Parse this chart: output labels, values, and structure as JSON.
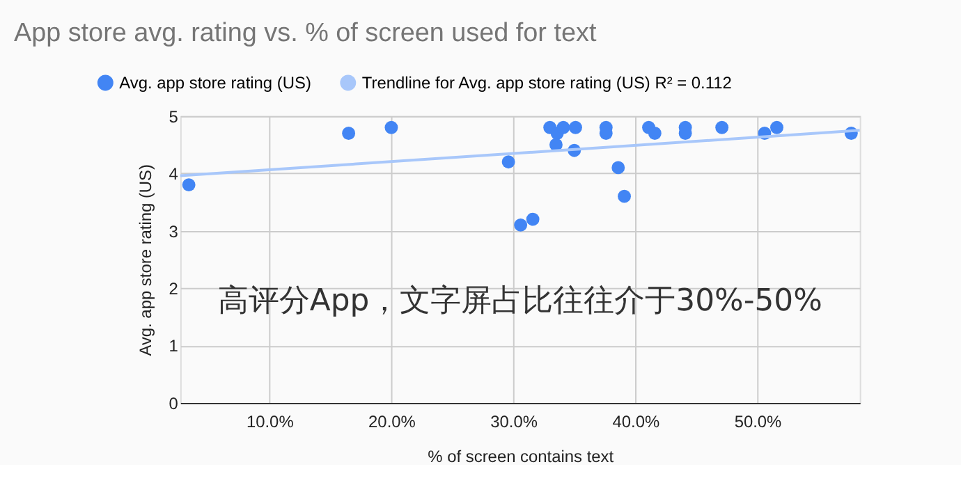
{
  "chart_data": {
    "type": "scatter",
    "title": "App store avg. rating vs. % of screen used for text",
    "xlabel": "% of screen contains text",
    "ylabel": "Avg. app store rating (US)",
    "x": [
      0.034,
      0.165,
      0.2,
      0.296,
      0.306,
      0.316,
      0.33,
      0.336,
      0.335,
      0.341,
      0.351,
      0.35,
      0.376,
      0.376,
      0.386,
      0.391,
      0.411,
      0.416,
      0.441,
      0.441,
      0.471,
      0.506,
      0.516,
      0.577
    ],
    "series": [
      {
        "name": "Avg. app store rating (US)",
        "color": "#4285f4",
        "values": [
          3.8,
          4.7,
          4.8,
          4.2,
          3.1,
          3.2,
          4.8,
          4.7,
          4.5,
          4.8,
          4.8,
          4.4,
          4.8,
          4.7,
          4.1,
          3.6,
          4.8,
          4.7,
          4.8,
          4.7,
          4.8,
          4.7,
          4.8,
          4.7
        ]
      },
      {
        "name": "Trendline for Avg. app store rating (US) R² = 0.112",
        "type": "line",
        "marker": "none",
        "color": "#a8c7fa",
        "x": [
          0.027,
          0.584
        ],
        "values": [
          3.96,
          4.75
        ]
      }
    ],
    "xlim": [
      0.027,
      0.584
    ],
    "xticks": [
      {
        "value": 0.1,
        "label": "10.0%"
      },
      {
        "value": 0.2,
        "label": "20.0%"
      },
      {
        "value": 0.3,
        "label": "30.0%"
      },
      {
        "value": 0.4,
        "label": "40.0%"
      },
      {
        "value": 0.5,
        "label": "50.0%"
      }
    ],
    "ylim": [
      0,
      5
    ],
    "yticks": [
      0,
      1,
      2,
      3,
      4,
      5
    ],
    "grid": true,
    "legend": "top left",
    "marker": "circle",
    "annotations": [
      "高评分App，文字屏占比往往介于30%-50%"
    ]
  }
}
